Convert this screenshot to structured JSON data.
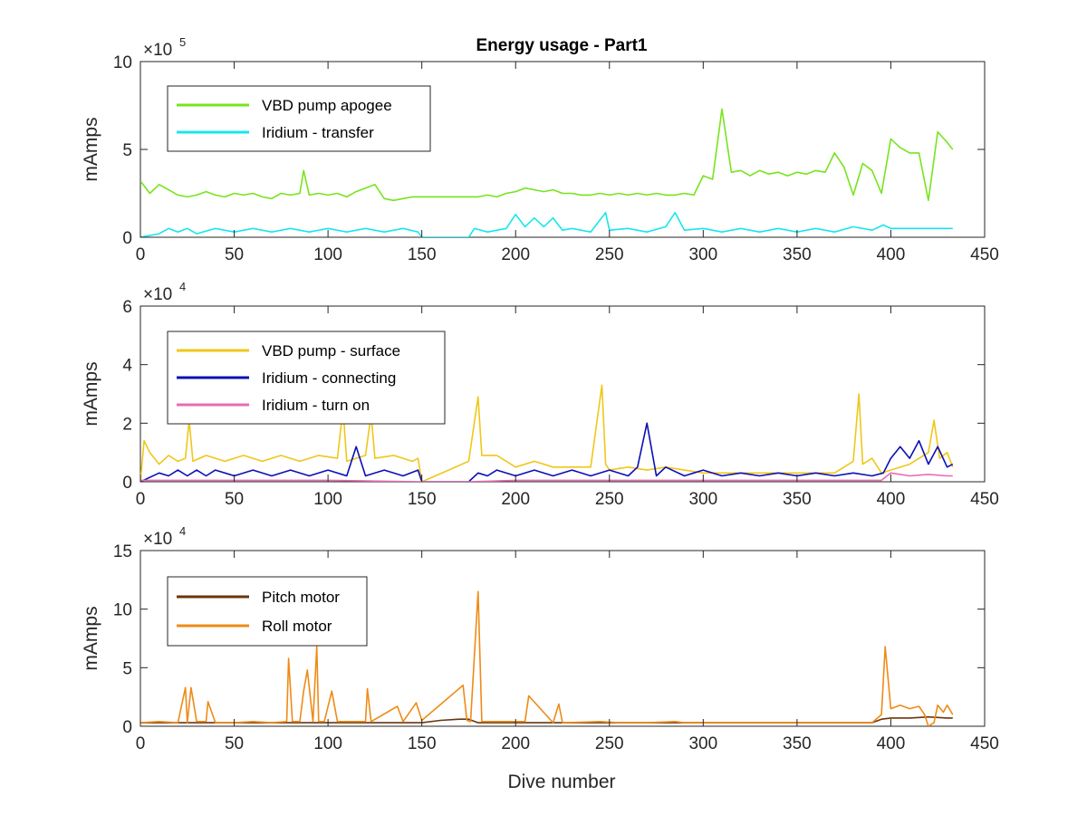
{
  "chart_data": [
    {
      "type": "line",
      "title": "Energy usage - Part1",
      "ylabel": "mAmps",
      "xlabel": "",
      "xlim": [
        0,
        450
      ],
      "ylim": [
        0,
        1000000
      ],
      "xticks": [
        "0",
        "50",
        "100",
        "150",
        "200",
        "250",
        "300",
        "350",
        "400",
        "450"
      ],
      "yticks": [
        "0",
        "5",
        "10"
      ],
      "multiplier": "×10",
      "multiplier_exp": "5",
      "legend_position": "top-left",
      "series": [
        {
          "name": "VBD pump apogee",
          "color": "#77e41d",
          "x": [
            0,
            5,
            10,
            15,
            20,
            25,
            30,
            35,
            40,
            45,
            50,
            55,
            60,
            65,
            70,
            75,
            80,
            85,
            87,
            90,
            95,
            100,
            105,
            110,
            115,
            120,
            125,
            130,
            135,
            140,
            145,
            150,
            160,
            170,
            175,
            180,
            185,
            190,
            195,
            200,
            205,
            210,
            215,
            220,
            225,
            230,
            235,
            240,
            245,
            250,
            255,
            260,
            265,
            270,
            275,
            280,
            285,
            290,
            295,
            300,
            305,
            310,
            315,
            320,
            325,
            330,
            335,
            340,
            345,
            350,
            355,
            360,
            365,
            370,
            375,
            380,
            385,
            390,
            395,
            400,
            405,
            410,
            415,
            420,
            425,
            430,
            433
          ],
          "y": [
            320000,
            250000,
            300000,
            270000,
            240000,
            230000,
            240000,
            260000,
            240000,
            230000,
            250000,
            240000,
            250000,
            230000,
            220000,
            250000,
            240000,
            250000,
            380000,
            240000,
            250000,
            240000,
            250000,
            230000,
            260000,
            280000,
            300000,
            220000,
            210000,
            220000,
            230000,
            230000,
            230000,
            230000,
            230000,
            230000,
            240000,
            230000,
            250000,
            260000,
            280000,
            270000,
            260000,
            270000,
            250000,
            250000,
            240000,
            240000,
            250000,
            240000,
            250000,
            240000,
            250000,
            240000,
            250000,
            240000,
            240000,
            250000,
            240000,
            350000,
            330000,
            730000,
            370000,
            380000,
            350000,
            380000,
            360000,
            370000,
            350000,
            370000,
            360000,
            380000,
            370000,
            480000,
            400000,
            240000,
            420000,
            380000,
            250000,
            560000,
            510000,
            480000,
            480000,
            210000,
            600000,
            540000,
            500000
          ]
        },
        {
          "name": "Iridium - transfer",
          "color": "#16e6ee",
          "x": [
            0,
            10,
            15,
            20,
            25,
            30,
            40,
            50,
            60,
            70,
            80,
            90,
            100,
            110,
            120,
            130,
            140,
            148,
            150,
            175,
            178,
            185,
            195,
            200,
            205,
            210,
            215,
            220,
            225,
            230,
            240,
            248,
            250,
            260,
            270,
            280,
            285,
            290,
            300,
            310,
            320,
            330,
            340,
            350,
            360,
            370,
            380,
            390,
            396,
            400,
            410,
            420,
            430,
            433
          ],
          "y": [
            0,
            20000,
            50000,
            30000,
            50000,
            20000,
            50000,
            30000,
            50000,
            30000,
            50000,
            30000,
            50000,
            30000,
            50000,
            30000,
            50000,
            30000,
            0,
            0,
            50000,
            30000,
            50000,
            130000,
            60000,
            110000,
            60000,
            110000,
            40000,
            50000,
            30000,
            140000,
            40000,
            50000,
            30000,
            60000,
            140000,
            40000,
            50000,
            30000,
            50000,
            30000,
            50000,
            30000,
            50000,
            30000,
            60000,
            40000,
            70000,
            50000,
            50000,
            50000,
            50000,
            50000
          ]
        }
      ]
    },
    {
      "type": "line",
      "title": "",
      "ylabel": "mAmps",
      "xlabel": "",
      "xlim": [
        0,
        450
      ],
      "ylim": [
        0,
        60000
      ],
      "xticks": [
        "0",
        "50",
        "100",
        "150",
        "200",
        "250",
        "300",
        "350",
        "400",
        "450"
      ],
      "yticks": [
        "0",
        "2",
        "4",
        "6"
      ],
      "multiplier": "×10",
      "multiplier_exp": "4",
      "legend_position": "top-left",
      "series": [
        {
          "name": "VBD pump - surface",
          "color": "#efc719",
          "x": [
            0,
            2,
            5,
            10,
            15,
            20,
            24,
            26,
            28,
            35,
            45,
            55,
            65,
            75,
            85,
            95,
            105,
            108,
            110,
            120,
            123,
            125,
            135,
            145,
            148,
            150,
            175,
            180,
            182,
            190,
            200,
            210,
            220,
            230,
            240,
            246,
            248,
            250,
            260,
            270,
            280,
            290,
            300,
            310,
            320,
            330,
            340,
            350,
            360,
            370,
            380,
            383,
            385,
            390,
            395,
            400,
            410,
            420,
            423,
            426,
            430,
            433
          ],
          "y": [
            0,
            14000,
            10000,
            6000,
            9000,
            7000,
            8000,
            21000,
            7000,
            9000,
            7000,
            9000,
            7000,
            9000,
            7000,
            9000,
            8000,
            25000,
            7000,
            9000,
            23000,
            8000,
            9000,
            7000,
            8000,
            0,
            7000,
            29000,
            9000,
            9000,
            5000,
            7000,
            5000,
            5000,
            5000,
            33000,
            6000,
            4000,
            5000,
            4000,
            5000,
            4000,
            3000,
            3000,
            3000,
            3000,
            3000,
            3000,
            3000,
            3000,
            7000,
            30000,
            6000,
            8000,
            3000,
            4000,
            6000,
            10000,
            21000,
            8000,
            10000,
            5000
          ]
        },
        {
          "name": "Iridium - connecting",
          "color": "#0b0fb4",
          "x": [
            0,
            10,
            15,
            20,
            25,
            30,
            35,
            40,
            50,
            60,
            70,
            80,
            90,
            100,
            110,
            115,
            120,
            130,
            140,
            148,
            150,
            175,
            180,
            185,
            190,
            200,
            210,
            220,
            230,
            240,
            250,
            260,
            265,
            270,
            275,
            280,
            290,
            300,
            310,
            320,
            330,
            340,
            350,
            360,
            370,
            380,
            390,
            396,
            400,
            405,
            410,
            415,
            420,
            425,
            430,
            433
          ],
          "y": [
            0,
            3000,
            2000,
            4000,
            2000,
            4000,
            2000,
            4000,
            2000,
            4000,
            2000,
            4000,
            2000,
            4000,
            2000,
            12000,
            2000,
            4000,
            2000,
            4000,
            0,
            0,
            3000,
            2000,
            4000,
            2000,
            4000,
            2000,
            4000,
            2000,
            4000,
            2000,
            5000,
            20000,
            2000,
            5000,
            2000,
            4000,
            2000,
            3000,
            2000,
            3000,
            2000,
            3000,
            2000,
            3000,
            2000,
            3000,
            8000,
            12000,
            8000,
            14000,
            6000,
            12000,
            5000,
            6000
          ]
        },
        {
          "name": "Iridium - turn on",
          "color": "#e96ab4",
          "x": [
            0,
            50,
            100,
            150,
            175,
            200,
            250,
            300,
            350,
            395,
            400,
            410,
            420,
            430,
            433
          ],
          "y": [
            500,
            500,
            500,
            0,
            0,
            500,
            500,
            500,
            500,
            500,
            3000,
            2000,
            2500,
            2000,
            2000
          ]
        }
      ]
    },
    {
      "type": "line",
      "title": "",
      "ylabel": "mAmps",
      "xlabel": "Dive number",
      "xlim": [
        0,
        450
      ],
      "ylim": [
        0,
        150000
      ],
      "xticks": [
        "0",
        "50",
        "100",
        "150",
        "200",
        "250",
        "300",
        "350",
        "400",
        "450"
      ],
      "yticks": [
        "0",
        "5",
        "10",
        "15"
      ],
      "multiplier": "×10",
      "multiplier_exp": "4",
      "legend_position": "top-left",
      "series": [
        {
          "name": "Pitch motor",
          "color": "#6a350b",
          "x": [
            0,
            50,
            100,
            150,
            160,
            170,
            175,
            180,
            200,
            250,
            300,
            350,
            390,
            395,
            400,
            410,
            420,
            430,
            433
          ],
          "y": [
            3000,
            3000,
            3000,
            3000,
            5000,
            6000,
            6000,
            3000,
            3000,
            3000,
            3000,
            3000,
            3000,
            6000,
            7000,
            7000,
            8000,
            7000,
            7000
          ]
        },
        {
          "name": "Roll motor",
          "color": "#ee8b17",
          "x": [
            0,
            10,
            20,
            24,
            25,
            27,
            30,
            35,
            36,
            40,
            50,
            60,
            70,
            78,
            79,
            81,
            85,
            87,
            89,
            92,
            94,
            95,
            98,
            102,
            105,
            120,
            121,
            123,
            137,
            140,
            147,
            150,
            172,
            174,
            176,
            180,
            182,
            185,
            205,
            207,
            220,
            223,
            225,
            245,
            255,
            270,
            285,
            290,
            300,
            310,
            330,
            350,
            370,
            390,
            395,
            397,
            400,
            405,
            410,
            415,
            418,
            420,
            423,
            425,
            428,
            430,
            433
          ],
          "y": [
            3000,
            4000,
            3000,
            33000,
            3000,
            33000,
            4000,
            4000,
            21000,
            3000,
            3000,
            4000,
            3000,
            4000,
            58000,
            4000,
            4000,
            30000,
            48000,
            4000,
            68000,
            4000,
            4000,
            30000,
            4000,
            4000,
            32000,
            4000,
            17000,
            4000,
            20000,
            5000,
            35000,
            5000,
            4000,
            115000,
            4000,
            4000,
            4000,
            26000,
            3000,
            19000,
            3000,
            4000,
            3000,
            3000,
            4000,
            3000,
            3000,
            3000,
            3000,
            3000,
            3000,
            3000,
            10000,
            68000,
            15000,
            18000,
            15000,
            17000,
            10000,
            0,
            3000,
            18000,
            12000,
            18000,
            10000
          ]
        }
      ]
    }
  ]
}
